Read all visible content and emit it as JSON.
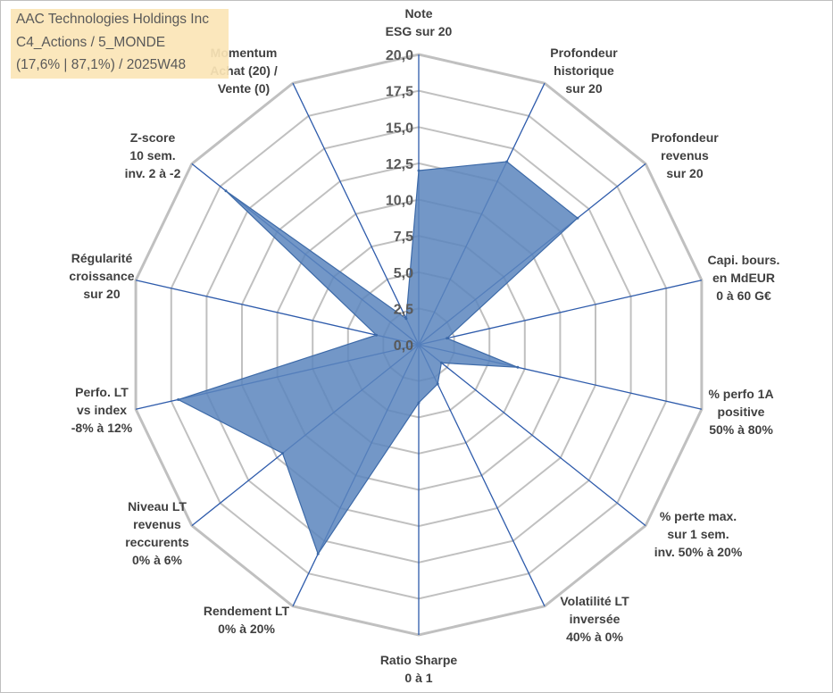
{
  "title": {
    "line1": "AAC Technologies Holdings Inc",
    "line2": "C4_Actions / 5_MONDE",
    "line3": "(17,6% | 87,1%) / 2025W48"
  },
  "colors": {
    "fill": "#5b85bd",
    "stroke": "#3d6aa8",
    "grid": "#c0c0c0",
    "spoke": "#2e5bab",
    "title_bg": "#fbe5b6"
  },
  "chart_data": {
    "type": "radar",
    "r_range": [
      0,
      20
    ],
    "r_ticks": [
      0,
      2.5,
      5,
      7.5,
      10,
      12.5,
      15,
      17.5,
      20
    ],
    "r_tick_labels": [
      "0,0",
      "2,5",
      "5,0",
      "7,5",
      "10,0",
      "12,5",
      "15,0",
      "17,5",
      "20,0"
    ],
    "axes": [
      {
        "label": [
          "Note",
          "ESG sur 20"
        ],
        "value": 12
      },
      {
        "label": [
          "Profondeur",
          "historique",
          "sur 20"
        ],
        "value": 14
      },
      {
        "label": [
          "Profondeur",
          "revenus",
          "sur 20"
        ],
        "value": 14
      },
      {
        "label": [
          "Capi. bours.",
          "en MdEUR",
          "0 à 60 G€"
        ],
        "value": 2
      },
      {
        "label": [
          "% perfo 1A",
          "positive",
          "50% à 80%"
        ],
        "value": 7
      },
      {
        "label": [
          "% perte max.",
          "sur 1 sem.",
          "inv. 50% à 20%"
        ],
        "value": 2
      },
      {
        "label": [
          "Volatilité LT",
          "inversée",
          "40% à 0%"
        ],
        "value": 3
      },
      {
        "label": [
          "Ratio Sharpe",
          "0 à 1"
        ],
        "value": 4
      },
      {
        "label": [
          "Rendement LT",
          "0% à 20%"
        ],
        "value": 16
      },
      {
        "label": [
          "Niveau LT",
          "revenus",
          "reccurents",
          "0% à 6%"
        ],
        "value": 12
      },
      {
        "label": [
          "Perfo. LT",
          "vs index",
          "-8% à 12%"
        ],
        "value": 17
      },
      {
        "label": [
          "Régularité",
          "croissance",
          "sur 20"
        ],
        "value": 3
      },
      {
        "label": [
          "Z-score",
          "10 sem.",
          "inv. 2 à -2"
        ],
        "value": 17
      },
      {
        "label": [
          "Momentum",
          "Achat (20) /",
          "Vente (0)"
        ],
        "value": 2
      }
    ]
  }
}
